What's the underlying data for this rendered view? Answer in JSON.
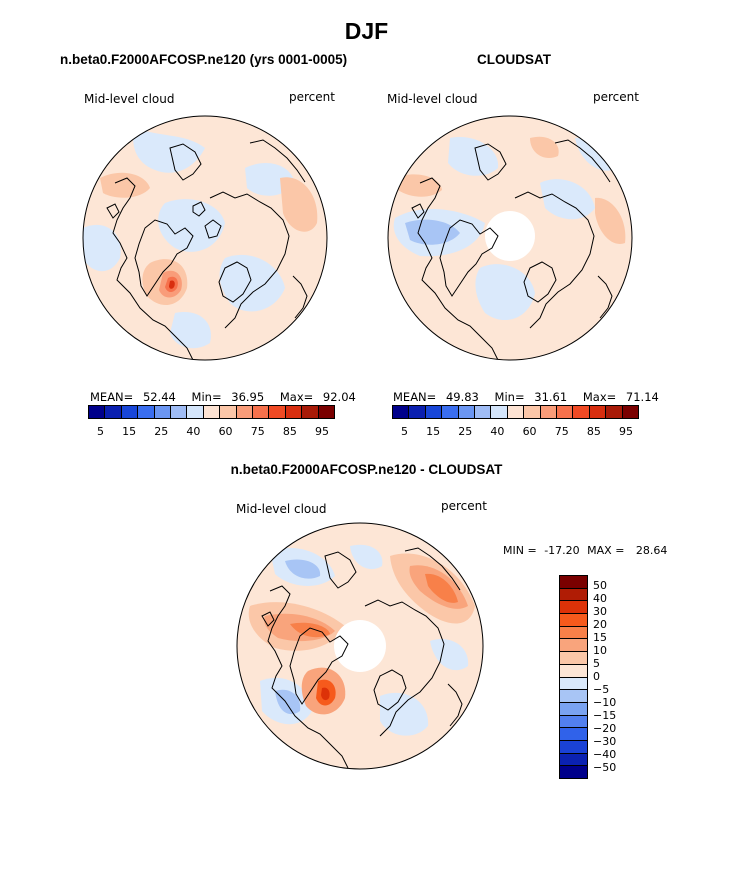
{
  "page_title": "DJF",
  "panels": {
    "model": {
      "case_title": "n.beta0.F2000AFCOSP.ne120 (yrs 0001-0005)",
      "variable": "Mid-level cloud",
      "units": "percent",
      "stats": {
        "mean_label": "MEAN=",
        "mean": "52.44",
        "min_label": "Min=",
        "min": "36.95",
        "max_label": "Max=",
        "max": "92.04"
      }
    },
    "obs": {
      "case_title": "CLOUDSAT",
      "variable": "Mid-level cloud",
      "units": "percent",
      "stats": {
        "mean_label": "MEAN=",
        "mean": "49.83",
        "min_label": "Min=",
        "min": "31.61",
        "max_label": "Max=",
        "max": "71.14"
      }
    },
    "diff": {
      "case_title": "n.beta0.F2000AFCOSP.ne120 - CLOUDSAT",
      "variable": "Mid-level cloud",
      "units": "percent",
      "stats": {
        "min_label": "MIN =",
        "min": "-17.20",
        "max_label": "MAX =",
        "max": "28.64"
      }
    }
  },
  "colorbars": {
    "abs": {
      "colors": [
        "#00008b",
        "#0a1fb0",
        "#1846d8",
        "#3a6ef0",
        "#6b96f2",
        "#9fbcf5",
        "#d4e5fb",
        "#fde3d3",
        "#fbc6a8",
        "#f99c79",
        "#f6714c",
        "#f04a24",
        "#d82e0f",
        "#a81a07",
        "#7a0000"
      ],
      "tick_labels": [
        "5",
        "15",
        "25",
        "40",
        "60",
        "75",
        "85",
        "95"
      ]
    },
    "diff": {
      "colors": [
        "#7a0000",
        "#b01c05",
        "#dd3208",
        "#f65a1c",
        "#f88049",
        "#f9a47c",
        "#fbc7a8",
        "#fde6d6",
        "#dae9fb",
        "#a8c5f5",
        "#7aa3f1",
        "#5280ef",
        "#3062ea",
        "#1a42d6",
        "#0b22b2",
        "#00008b"
      ],
      "tick_labels": [
        "50",
        "40",
        "30",
        "20",
        "15",
        "10",
        "5",
        "0",
        "−5",
        "−10",
        "−15",
        "−20",
        "−30",
        "−40",
        "−50"
      ]
    }
  }
}
